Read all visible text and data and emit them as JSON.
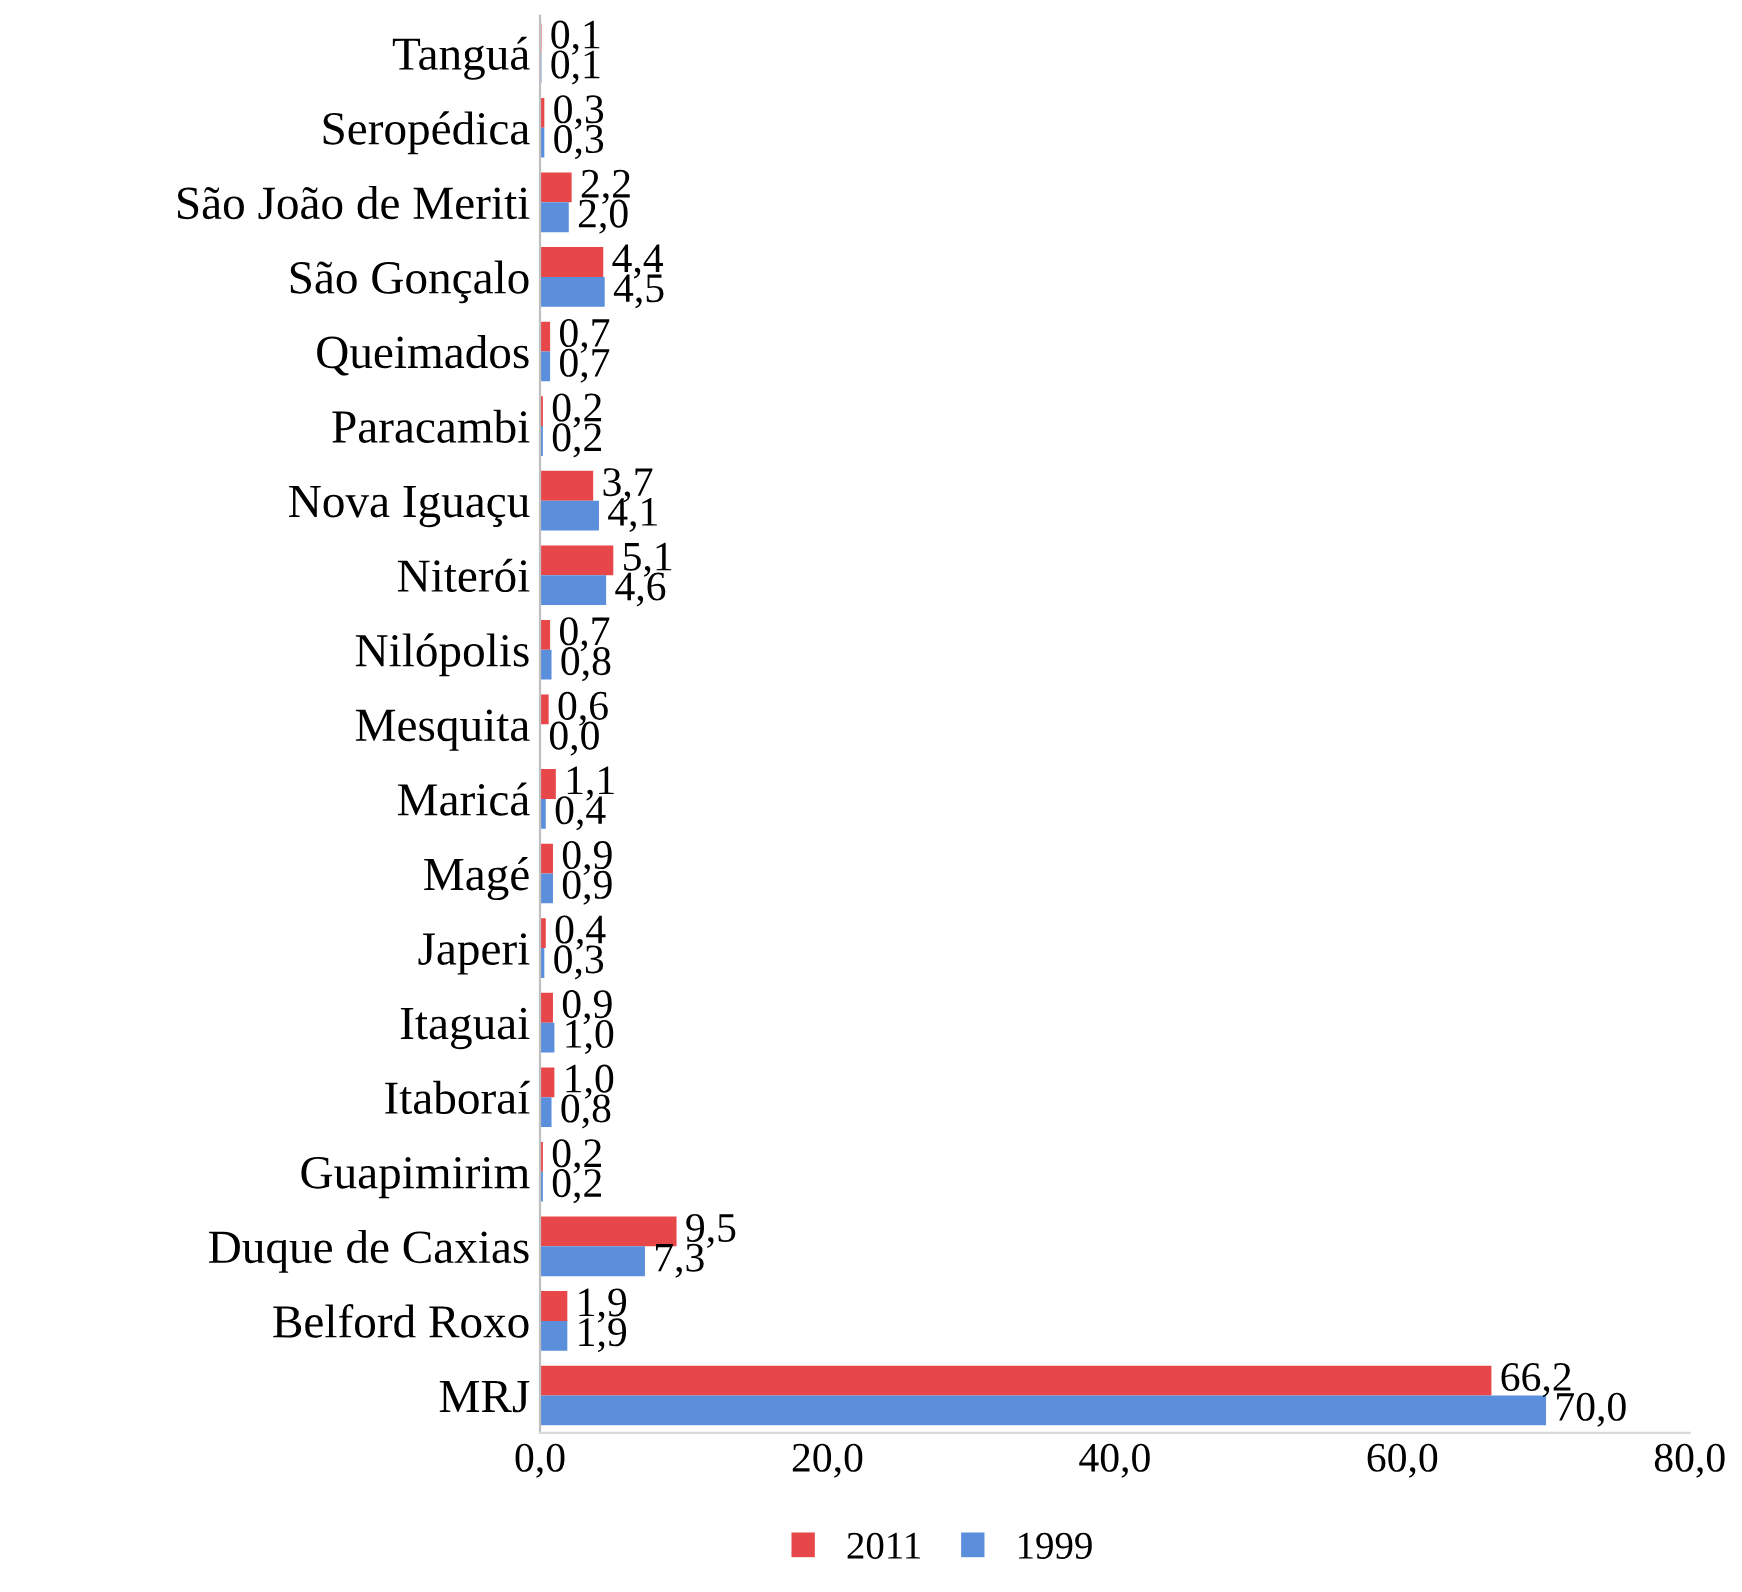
{
  "chart_data": {
    "type": "bar",
    "orientation": "horizontal",
    "categories": [
      "Tanguá",
      "Seropédica",
      "São João de Meriti",
      "São Gonçalo",
      "Queimados",
      "Paracambi",
      "Nova Iguaçu",
      "Niterói",
      "Nilópolis",
      "Mesquita",
      "Maricá",
      "Magé",
      "Japeri",
      "Itaguai",
      "Itaboraí",
      "Guapimirim",
      "Duque de Caxias",
      "Belford Roxo",
      "MRJ"
    ],
    "series": [
      {
        "name": "2011",
        "color": "#e8474a",
        "values": [
          0.1,
          0.3,
          2.2,
          4.4,
          0.7,
          0.2,
          3.7,
          5.1,
          0.7,
          0.6,
          1.1,
          0.9,
          0.4,
          0.9,
          1.0,
          0.2,
          9.5,
          1.9,
          66.2
        ],
        "value_labels": [
          "0,1",
          "0,3",
          "2,2",
          "4,4",
          "0,7",
          "0,2",
          "3,7",
          "5,1",
          "0,7",
          "0,6",
          "1,1",
          "0,9",
          "0,4",
          "0,9",
          "1,0",
          "0,2",
          "9,5",
          "1,9",
          "66,2"
        ]
      },
      {
        "name": "1999",
        "color": "#5b8fdc",
        "values": [
          0.1,
          0.3,
          2.0,
          4.5,
          0.7,
          0.2,
          4.1,
          4.6,
          0.8,
          0.0,
          0.4,
          0.9,
          0.3,
          1.0,
          0.8,
          0.2,
          7.3,
          1.9,
          70.0
        ],
        "value_labels": [
          "0,1",
          "0,3",
          "2,0",
          "4,5",
          "0,7",
          "0,2",
          "4,1",
          "4,6",
          "0,8",
          "0,0",
          "0,4",
          "0,9",
          "0,3",
          "1,0",
          "0,8",
          "0,2",
          "7,3",
          "1,9",
          "70,0"
        ]
      }
    ],
    "xlim": [
      0,
      80
    ],
    "xticks": [
      {
        "value": 0,
        "label": "0,0"
      },
      {
        "value": 20,
        "label": "20,0"
      },
      {
        "value": 40,
        "label": "40,0"
      },
      {
        "value": 60,
        "label": "60,0"
      },
      {
        "value": 80,
        "label": "80,0"
      }
    ],
    "grid": false,
    "legend": "bottom"
  }
}
